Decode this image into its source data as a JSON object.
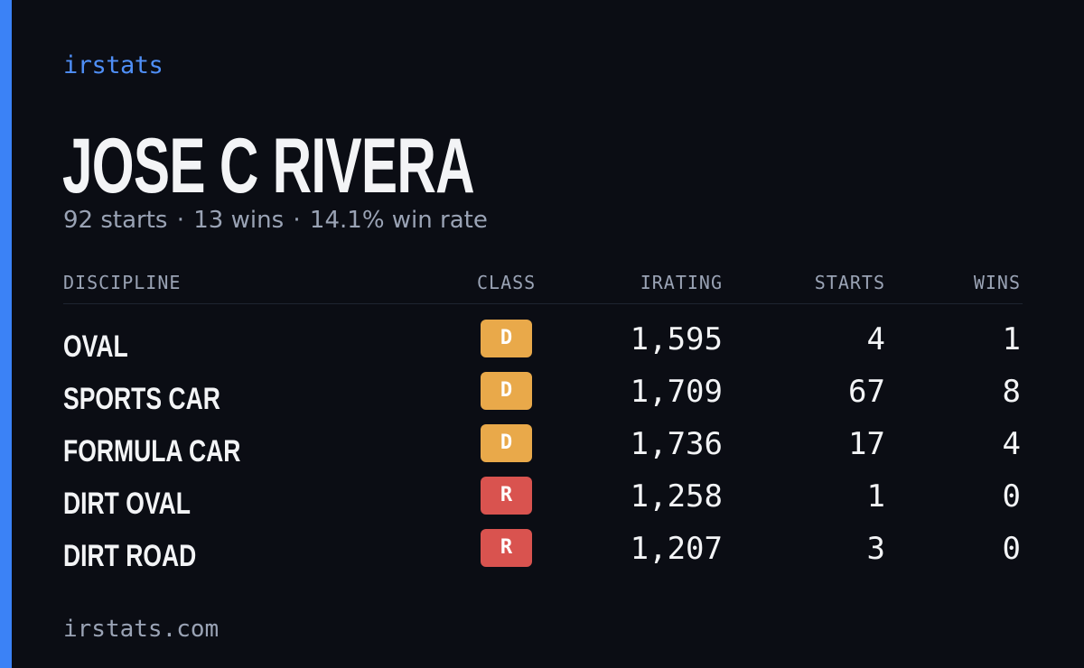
{
  "brand": "irstats",
  "driver": {
    "name": "JOSE C RIVERA",
    "starts_text": "92 starts",
    "wins_text": "13 wins",
    "win_rate_text": "14.1% win rate",
    "separator": "·"
  },
  "table": {
    "headers": {
      "discipline": "DISCIPLINE",
      "class": "CLASS",
      "irating": "IRATING",
      "starts": "STARTS",
      "wins": "WINS"
    },
    "rows": [
      {
        "discipline": "OVAL",
        "class": "D",
        "irating": "1,595",
        "starts": "4",
        "wins": "1"
      },
      {
        "discipline": "SPORTS CAR",
        "class": "D",
        "irating": "1,709",
        "starts": "67",
        "wins": "8"
      },
      {
        "discipline": "FORMULA CAR",
        "class": "D",
        "irating": "1,736",
        "starts": "17",
        "wins": "4"
      },
      {
        "discipline": "DIRT OVAL",
        "class": "R",
        "irating": "1,258",
        "starts": "1",
        "wins": "0"
      },
      {
        "discipline": "DIRT ROAD",
        "class": "R",
        "irating": "1,207",
        "starts": "3",
        "wins": "0"
      }
    ]
  },
  "class_colors": {
    "D": "#e9a94a",
    "R": "#d9534f"
  },
  "accent_color": "#3b82f6",
  "footer": "irstats.com"
}
